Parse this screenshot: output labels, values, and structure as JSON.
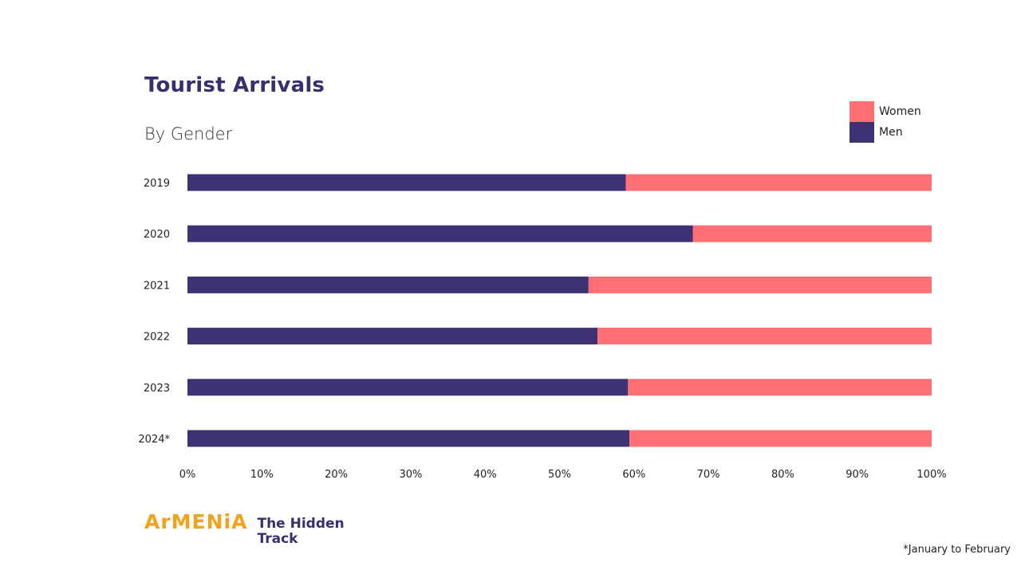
{
  "chart_data": {
    "type": "bar",
    "orientation": "horizontal",
    "stacked": true,
    "percent": true,
    "title": "Tourist Arrivals",
    "subtitle": "By Gender",
    "categories": [
      "2019",
      "2020",
      "2021",
      "2022",
      "2023",
      "2024*"
    ],
    "series": [
      {
        "name": "Men",
        "color": "#3f3274",
        "values": [
          58.9,
          67.9,
          53.9,
          55.1,
          59.2,
          59.4
        ]
      },
      {
        "name": "Women",
        "color": "#ff6f73",
        "values": [
          41.1,
          32.1,
          46.1,
          44.9,
          40.8,
          40.6
        ]
      }
    ],
    "xlim": [
      0,
      100
    ],
    "x_ticks": [
      "0%",
      "10%",
      "20%",
      "30%",
      "40%",
      "50%",
      "60%",
      "70%",
      "80%",
      "90%",
      "100%"
    ],
    "xlabel": "",
    "ylabel": "",
    "grid": false,
    "legend": {
      "position": "top-right",
      "entries": [
        "Women",
        "Men"
      ]
    },
    "footnote": "*January to February"
  },
  "branding": {
    "logo_main": "ArMENiA",
    "logo_tag_line1": "The Hidden",
    "logo_tag_line2": "Track"
  }
}
